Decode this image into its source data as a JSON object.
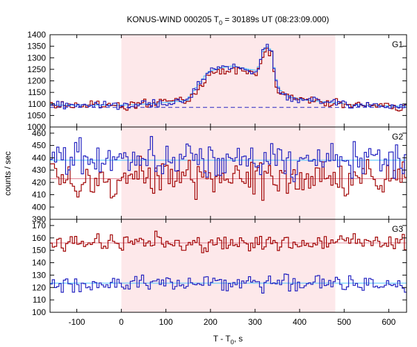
{
  "chart_data": {
    "type": "line",
    "title_prefix": "KONUS-WIND 000205 T",
    "title_sub": "0",
    "title_suffix": " = 30189s UT (08:23:09.000)",
    "xlabel_prefix": "T - T",
    "xlabel_sub": "0",
    "xlabel_suffix": ", s",
    "ylabel": "counts / sec",
    "xlim": [
      -160,
      640
    ],
    "xticks": [
      -100,
      0,
      100,
      200,
      300,
      400,
      500,
      600
    ],
    "shaded_interval": [
      0,
      480
    ],
    "bin_width": 5,
    "colors": {
      "red": "#a00000",
      "blue": "#2020c0",
      "fit": "#40c0ff",
      "shade": "#fde8ea"
    },
    "panels": [
      {
        "label": "G1",
        "ylim": [
          1000,
          1400
        ],
        "yticks": [
          1000,
          1050,
          1100,
          1150,
          1200,
          1250,
          1300,
          1350,
          1400
        ],
        "background_level": 1085,
        "baseline": 1095,
        "fluctuation": 12,
        "pulse_points": [
          [
            -160,
            1095
          ],
          [
            0,
            1095
          ],
          [
            60,
            1100
          ],
          [
            150,
            1115
          ],
          [
            175,
            1180
          ],
          [
            195,
            1230
          ],
          [
            220,
            1245
          ],
          [
            250,
            1255
          ],
          [
            285,
            1240
          ],
          [
            305,
            1235
          ],
          [
            318,
            1320
          ],
          [
            328,
            1340
          ],
          [
            338,
            1315
          ],
          [
            345,
            1210
          ],
          [
            355,
            1150
          ],
          [
            380,
            1130
          ],
          [
            420,
            1115
          ],
          [
            480,
            1105
          ],
          [
            520,
            1095
          ],
          [
            640,
            1090
          ]
        ],
        "blue_offset": 10,
        "red_offset": -5
      },
      {
        "label": "G2",
        "ylim": [
          390,
          465
        ],
        "yticks": [
          390,
          400,
          410,
          420,
          430,
          440,
          450,
          460
        ],
        "blue_level": 438,
        "red_level": 423,
        "fluctuation": 10
      },
      {
        "label": "G3",
        "ylim": [
          100,
          175
        ],
        "yticks": [
          100,
          110,
          120,
          130,
          140,
          150,
          160,
          170
        ],
        "red_level": 156,
        "blue_level": 123.5,
        "fluctuation": 5
      }
    ]
  }
}
